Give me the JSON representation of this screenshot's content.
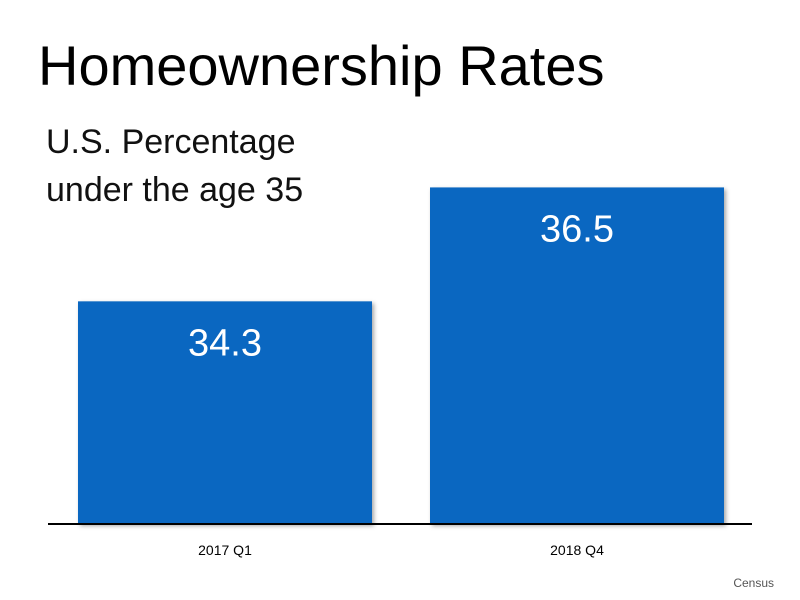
{
  "title": "Homeownership Rates",
  "subtitle_lines": [
    "U.S. Percentage",
    "under the age 35"
  ],
  "source": "Census",
  "colors": {
    "bar": "#0a67c1",
    "axis": "#000000",
    "value_text": "#ffffff"
  },
  "chart_data": {
    "type": "bar",
    "categories": [
      "2017 Q1",
      "2018 Q4"
    ],
    "values": [
      34.3,
      36.5
    ],
    "data_labels": [
      "34.3",
      "36.5"
    ],
    "title": "Homeownership Rates",
    "subtitle": "U.S. Percentage under the age 35",
    "xlabel": "",
    "ylabel": "",
    "ylim": [
      30,
      37.3
    ],
    "grid": false,
    "legend": "none"
  }
}
